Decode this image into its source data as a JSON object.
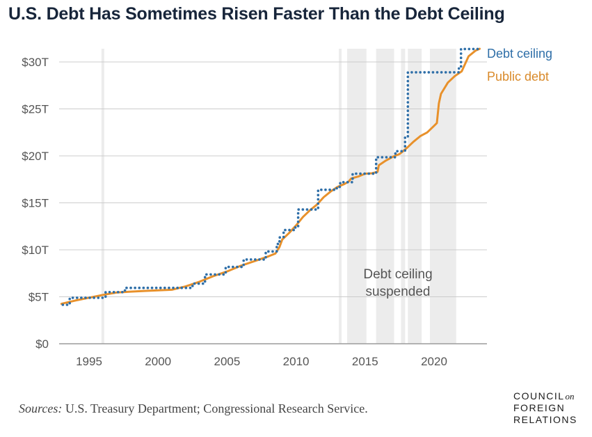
{
  "title": "U.S. Debt Has Sometimes Risen Faster Than the Debt Ceiling",
  "sources": {
    "label": "Sources:",
    "text": " U.S. Treasury Department; Congressional Research Service."
  },
  "logo": {
    "line1": "COUNCIL",
    "on": "on",
    "line2": "FOREIGN",
    "line3": "RELATIONS"
  },
  "chart_data": {
    "type": "line",
    "title": "U.S. Debt Has Sometimes Risen Faster Than the Debt Ceiling",
    "xlabel": "",
    "ylabel": "",
    "xlim": [
      1992.2,
      2023.7
    ],
    "ylim": [
      0,
      31.5
    ],
    "xticks": [
      1995,
      2000,
      2005,
      2010,
      2015,
      2020
    ],
    "yticks": [
      0,
      5,
      10,
      15,
      20,
      25,
      30
    ],
    "ytick_labels": [
      "$0",
      "$5T",
      "$10T",
      "$15T",
      "$20T",
      "$25T",
      "$30T"
    ],
    "colors": {
      "debt_ceiling": "#2f6fa8",
      "public_debt": "#e8912b",
      "grid": "#cccccc",
      "shade": "#ececec"
    },
    "series": [
      {
        "name": "Debt ceiling",
        "style": "dotted",
        "x": [
          1993.1,
          1993.6,
          1993.6,
          1996.2,
          1996.2,
          1997.6,
          1997.6,
          2002.5,
          2002.5,
          2003.4,
          2003.4,
          2004.9,
          2004.9,
          2006.2,
          2006.2,
          2007.8,
          2007.8,
          2008.6,
          2008.6,
          2008.8,
          2008.8,
          2009.1,
          2009.1,
          2009.95,
          2009.95,
          2010.15,
          2010.15,
          2011.6,
          2011.6,
          2012.95,
          2012.95,
          2013.2,
          2013.2,
          2014.1,
          2014.1,
          2015.8,
          2015.8,
          2017.2,
          2017.2,
          2017.9,
          2017.9,
          2018.1,
          2018.1,
          2021.8,
          2021.8,
          2021.95,
          2021.95,
          2022.0,
          2022.0,
          2023.2
        ],
        "values": [
          4.15,
          4.15,
          4.9,
          4.9,
          5.5,
          5.5,
          5.95,
          5.95,
          6.4,
          6.4,
          7.38,
          7.38,
          8.18,
          8.18,
          8.97,
          8.97,
          9.82,
          9.82,
          10.62,
          10.62,
          11.32,
          11.32,
          12.1,
          12.1,
          12.39,
          12.39,
          14.29,
          14.29,
          16.39,
          16.39,
          16.7,
          16.7,
          17.2,
          17.2,
          18.1,
          18.1,
          19.85,
          19.85,
          20.5,
          20.5,
          21.99,
          21.99,
          28.9,
          28.9,
          29.4,
          29.4,
          31.38,
          31.38,
          31.38,
          31.38
        ]
      },
      {
        "name": "Public debt",
        "style": "solid",
        "x": [
          1993.0,
          1994.0,
          1995.0,
          1996.0,
          1997.0,
          1998.0,
          1999.0,
          2000.0,
          2001.0,
          2002.0,
          2003.0,
          2004.0,
          2005.0,
          2006.0,
          2007.0,
          2008.0,
          2008.5,
          2008.8,
          2009.0,
          2009.5,
          2010.0,
          2010.5,
          2011.0,
          2011.5,
          2012.0,
          2012.5,
          2013.0,
          2013.5,
          2013.8,
          2014.0,
          2014.5,
          2015.0,
          2015.5,
          2015.9,
          2016.0,
          2016.5,
          2017.0,
          2017.5,
          2018.0,
          2018.5,
          2019.0,
          2019.5,
          2020.0,
          2020.2,
          2020.35,
          2020.5,
          2021.0,
          2021.5,
          2022.0,
          2022.5,
          2023.0,
          2023.3
        ],
        "values": [
          4.25,
          4.6,
          4.9,
          5.2,
          5.45,
          5.55,
          5.62,
          5.68,
          5.75,
          6.1,
          6.6,
          7.2,
          7.7,
          8.3,
          8.8,
          9.3,
          9.6,
          10.3,
          11.1,
          11.8,
          12.6,
          13.5,
          14.2,
          14.8,
          15.6,
          16.2,
          16.7,
          17.0,
          17.25,
          17.6,
          17.8,
          18.1,
          18.15,
          18.3,
          19.0,
          19.5,
          19.9,
          20.2,
          20.8,
          21.5,
          22.1,
          22.5,
          23.2,
          23.5,
          25.6,
          26.6,
          27.8,
          28.5,
          29.0,
          30.6,
          31.2,
          31.4
        ]
      }
    ],
    "shaded_periods": [
      [
        2013.1,
        2013.3
      ],
      [
        2013.7,
        2015.1
      ],
      [
        2015.8,
        2017.1
      ],
      [
        2017.6,
        2017.9
      ],
      [
        2018.1,
        2019.1
      ],
      [
        2019.7,
        2021.6
      ],
      [
        1995.9,
        1996.1
      ]
    ],
    "legend": [
      {
        "label": "Debt ceiling",
        "color": "#2f6fa8"
      },
      {
        "label": "Public debt",
        "color": "#e8912b"
      }
    ],
    "annotation": {
      "line1": "Debt ceiling",
      "line2": "suspended"
    }
  }
}
